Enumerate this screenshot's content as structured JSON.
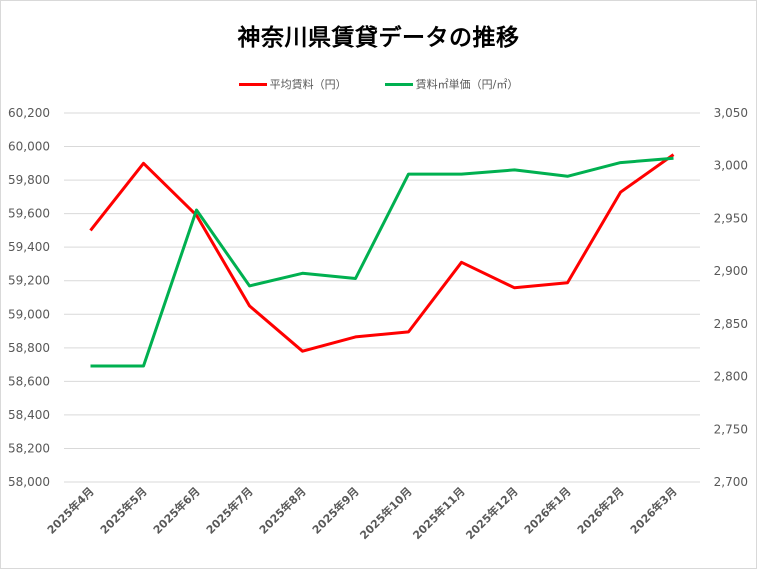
{
  "chart_data": {
    "type": "line",
    "title": "神奈川県賃貸データの推移",
    "categories": [
      "2025年4月",
      "2025年5月",
      "2025年6月",
      "2025年7月",
      "2025年8月",
      "2025年9月",
      "2025年10月",
      "2025年11月",
      "2025年12月",
      "2026年1月",
      "2026年2月",
      "2026年3月"
    ],
    "series": [
      {
        "name": "平均賃料（円）",
        "axis": "left",
        "color": "#ff0000",
        "values": [
          59500,
          59900,
          59590,
          59050,
          58780,
          58865,
          58895,
          59310,
          59158,
          59188,
          59728,
          59952
        ]
      },
      {
        "name": "賃料㎡単価（円/㎡）",
        "axis": "right",
        "color": "#00b050",
        "values": [
          2810,
          2810,
          2958,
          2886,
          2898,
          2893,
          2992,
          2992,
          2996,
          2990,
          3003,
          3007
        ]
      }
    ],
    "left_axis": {
      "min": 58000,
      "max": 60200,
      "step": 200,
      "ticks": [
        "58,000",
        "58,200",
        "58,400",
        "58,600",
        "58,800",
        "59,000",
        "59,200",
        "59,400",
        "59,600",
        "59,800",
        "60,000",
        "60,200"
      ]
    },
    "right_axis": {
      "min": 2700,
      "max": 3050,
      "step": 50,
      "ticks": [
        "2,700",
        "2,750",
        "2,800",
        "2,850",
        "2,900",
        "2,950",
        "3,000",
        "3,050"
      ]
    },
    "xlabel": "",
    "ylabel": "",
    "grid": true,
    "legend_position": "top"
  },
  "legend": {
    "items": [
      {
        "label": "平均賃料（円）",
        "color": "#ff0000"
      },
      {
        "label": "賃料㎡単価（円/㎡）",
        "color": "#00b050"
      }
    ]
  }
}
